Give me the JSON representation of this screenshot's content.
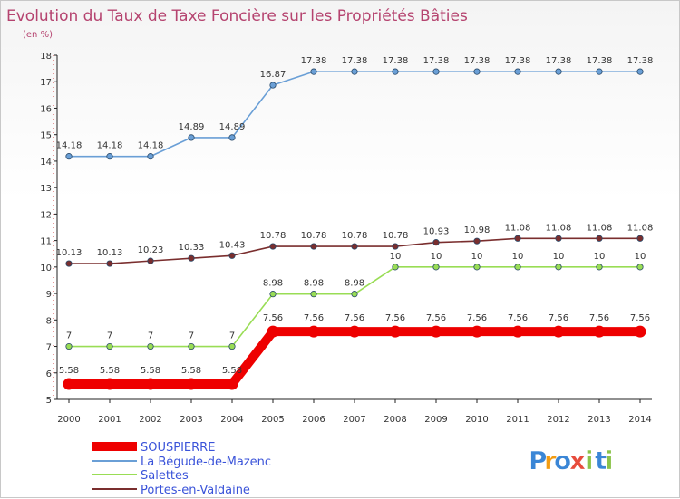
{
  "chart_data": {
    "type": "line",
    "title": "Evolution du Taux de Taxe Foncière sur les Propriétés Bâties",
    "subtitle": "(en %)",
    "xlabel": "",
    "ylabel": "",
    "ylim": [
      5,
      18
    ],
    "yticks": [
      5,
      6,
      7,
      8,
      9,
      10,
      11,
      12,
      13,
      14,
      15,
      16,
      17,
      18
    ],
    "categories": [
      "2000",
      "2001",
      "2002",
      "2003",
      "2004",
      "2005",
      "2006",
      "2007",
      "2008",
      "2009",
      "2010",
      "2011",
      "2012",
      "2013",
      "2014"
    ],
    "series": [
      {
        "name": "SOUSPIERRE",
        "color": "#ee0000",
        "values": [
          5.58,
          5.58,
          5.58,
          5.58,
          5.58,
          7.56,
          7.56,
          7.56,
          7.56,
          7.56,
          7.56,
          7.56,
          7.56,
          7.56,
          7.56
        ],
        "labels": [
          "5.58",
          "5.58",
          "5.58",
          "5.58",
          "5.58",
          "7.56",
          "7.56",
          "7.56",
          "7.56",
          "7.56",
          "7.56",
          "7.56",
          "7.56",
          "7.56",
          "7.56"
        ]
      },
      {
        "name": "La Bégude-de-Mazenc",
        "color": "#6a9fd6",
        "values": [
          14.18,
          14.18,
          14.18,
          14.89,
          14.89,
          16.87,
          17.38,
          17.38,
          17.38,
          17.38,
          17.38,
          17.38,
          17.38,
          17.38,
          17.38
        ],
        "labels": [
          "14.18",
          "14.18",
          "14.18",
          "14.89",
          "14.89",
          "16.87",
          "17.38",
          "17.38",
          "17.38",
          "17.38",
          "17.38",
          "17.38",
          "17.38",
          "17.38",
          "17.38"
        ]
      },
      {
        "name": "Salettes",
        "color": "#99dd55",
        "values": [
          7,
          7,
          7,
          7,
          7,
          8.98,
          8.98,
          8.98,
          10,
          10,
          10,
          10,
          10,
          10,
          10
        ],
        "labels": [
          "7",
          "7",
          "7",
          "7",
          "7",
          "8.98",
          "8.98",
          "8.98",
          "10",
          "10",
          "10",
          "10",
          "10",
          "10",
          "10"
        ]
      },
      {
        "name": "Portes-en-Valdaine",
        "color": "#7a2e2e",
        "values": [
          10.13,
          10.13,
          10.23,
          10.33,
          10.43,
          10.78,
          10.78,
          10.78,
          10.78,
          10.93,
          10.98,
          11.08,
          11.08,
          11.08,
          11.08
        ],
        "labels": [
          "10.13",
          "10.13",
          "10.23",
          "10.33",
          "10.43",
          "10.78",
          "10.78",
          "10.78",
          "10.78",
          "10.93",
          "10.98",
          "11.08",
          "11.08",
          "11.08",
          "11.08"
        ]
      }
    ],
    "legend": "bottom-left",
    "grid": false
  },
  "logo": {
    "letters": [
      "P",
      "r",
      "o",
      "x",
      "i",
      "t",
      "i"
    ],
    "colors": [
      "#3a86d6",
      "#f39c12",
      "#3a86d6",
      "#e74c3c",
      "#8bc34a",
      "#3a86d6",
      "#8bc34a"
    ]
  }
}
